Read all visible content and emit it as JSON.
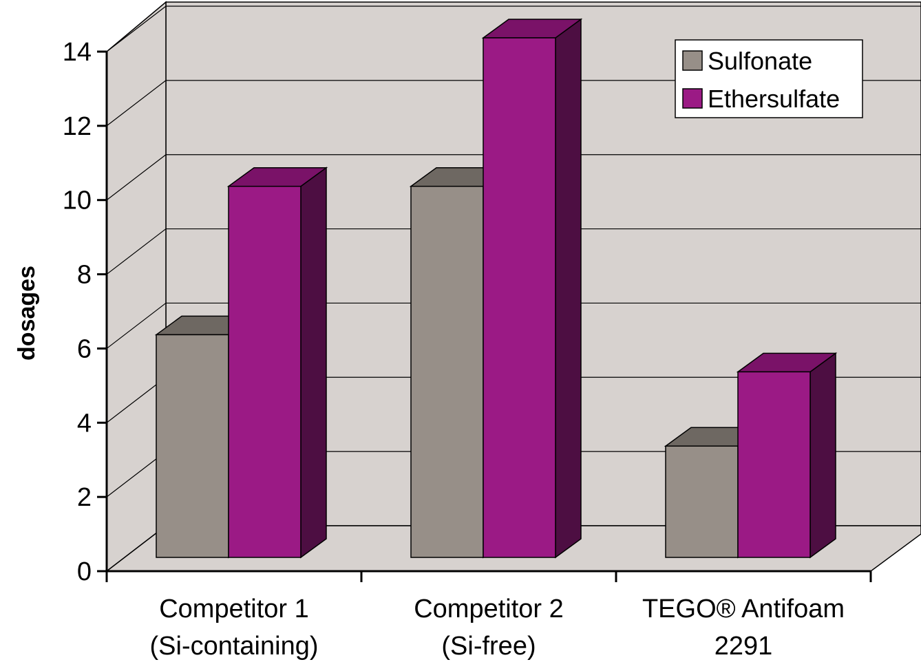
{
  "chart_data": {
    "type": "bar",
    "title": "",
    "xlabel": "",
    "ylabel": "dosages",
    "ylim": [
      0,
      14
    ],
    "yticks": [
      0,
      2,
      4,
      6,
      8,
      10,
      12,
      14
    ],
    "grid": true,
    "three_d": true,
    "legend_position": "top-right",
    "categories": [
      [
        "Competitor 1",
        "(Si-containing)"
      ],
      [
        "Competitor 2",
        "(Si-free)"
      ],
      [
        "TEGO® Antifoam",
        "2291"
      ]
    ],
    "series": [
      {
        "name": "Sulfonate",
        "values": [
          6,
          10,
          3
        ],
        "color": "#978f88",
        "top_color": "#6e6862",
        "side_color": "#5a5550"
      },
      {
        "name": "Ethersulfate",
        "values": [
          10,
          14,
          5
        ],
        "color": "#9b1a85",
        "top_color": "#7a1268",
        "side_color": "#4d0e42"
      }
    ],
    "wall_color": "#d7d2cf"
  }
}
